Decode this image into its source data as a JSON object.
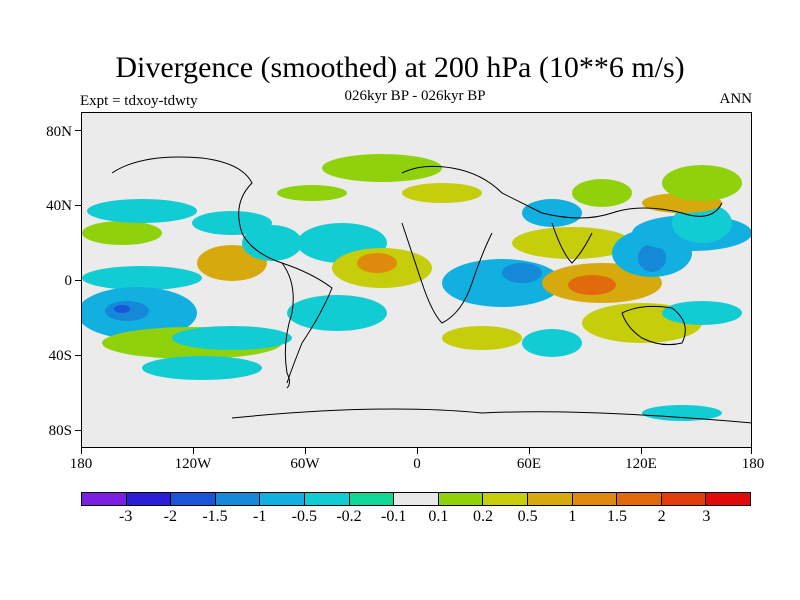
{
  "header": {
    "title": "Divergence (smoothed) at 200 hPa (10**6 m/s)",
    "subtitle": "026kyr BP - 026kyr BP",
    "experiment": "Expt = tdxoy-tdwty",
    "season": "ANN"
  },
  "axes": {
    "y_labels": [
      "80N",
      "40N",
      "0",
      "40S",
      "80S"
    ],
    "x_labels": [
      "180",
      "120W",
      "60W",
      "0",
      "60E",
      "120E",
      "180"
    ]
  },
  "colorbar": {
    "colors": [
      "#7b1fe0",
      "#2a1fd6",
      "#1a55d8",
      "#1588d8",
      "#12b0e0",
      "#12ccd4",
      "#0fd896",
      "#e8e8e8",
      "#8fd20c",
      "#c6cd0a",
      "#d6a90c",
      "#de8a0c",
      "#e06a0c",
      "#e03c0c",
      "#e00c0c"
    ],
    "labels": [
      "-3",
      "-2",
      "-1.5",
      "-1",
      "-0.5",
      "-0.2",
      "-0.1",
      "0.1",
      "0.2",
      "0.5",
      "1",
      "1.5",
      "2",
      "3"
    ]
  }
}
